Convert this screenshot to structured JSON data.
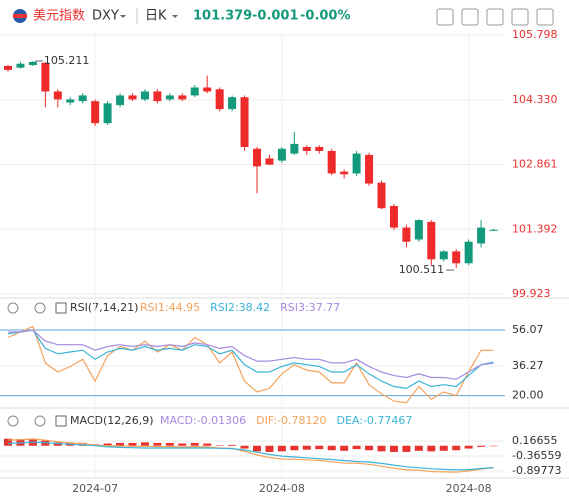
{
  "header": {
    "name": "美元指数",
    "symbol": "DXY",
    "period": "日K",
    "price": "101.379",
    "change": "-0.001",
    "change_pct": "-0.00%"
  },
  "chart_data": [
    {
      "type": "candlestick",
      "up_color": "#139a7c",
      "down_color": "#ee2a2a",
      "grid": true,
      "categories": [
        null,
        null,
        null,
        null,
        null,
        null,
        null,
        "2024-07",
        null,
        null,
        null,
        null,
        null,
        null,
        null,
        null,
        null,
        null,
        null,
        null,
        null,
        null,
        "2024-08",
        null,
        null,
        null,
        null,
        null,
        null,
        null,
        null,
        null,
        null,
        null,
        null,
        null,
        null,
        "2024-08",
        null,
        null
      ],
      "open": [
        105.1,
        105.06,
        105.12,
        105.17,
        104.52,
        104.27,
        104.3,
        104.3,
        103.8,
        104.21,
        104.43,
        104.34,
        104.52,
        104.34,
        104.43,
        104.43,
        104.61,
        104.57,
        104.12,
        104.39,
        103.22,
        103.0,
        102.95,
        103.11,
        103.26,
        103.26,
        103.17,
        102.7,
        102.66,
        103.08,
        102.45,
        101.92,
        101.43,
        101.16,
        101.56,
        100.71,
        100.89,
        100.62,
        101.07,
        101.375
      ],
      "high": [
        105.12,
        105.19,
        105.211,
        105.19,
        104.57,
        104.39,
        104.48,
        104.34,
        104.3,
        104.48,
        104.48,
        104.57,
        104.57,
        104.48,
        104.48,
        104.66,
        104.88,
        104.61,
        104.43,
        104.43,
        103.26,
        103.08,
        103.26,
        103.6,
        103.3,
        103.3,
        103.22,
        102.75,
        103.17,
        103.13,
        102.5,
        101.97,
        101.5,
        101.62,
        101.6,
        100.92,
        100.94,
        101.16,
        101.6,
        101.4
      ],
      "low": [
        104.97,
        105.04,
        105.1,
        104.16,
        104.16,
        104.21,
        104.25,
        103.74,
        103.76,
        104.16,
        104.3,
        104.3,
        104.25,
        104.3,
        104.3,
        104.39,
        104.48,
        104.07,
        104.07,
        103.17,
        102.21,
        102.85,
        102.9,
        103.08,
        103.08,
        103.11,
        102.62,
        102.55,
        102.6,
        102.38,
        101.85,
        101.38,
        100.98,
        101.11,
        100.57,
        100.66,
        100.511,
        100.58,
        100.98,
        101.36
      ],
      "close": [
        105.01,
        105.15,
        105.19,
        104.52,
        104.34,
        104.34,
        104.43,
        103.8,
        104.25,
        104.43,
        104.34,
        104.52,
        104.3,
        104.43,
        104.34,
        104.61,
        104.52,
        104.12,
        104.39,
        103.26,
        102.82,
        102.86,
        103.22,
        103.33,
        103.17,
        103.17,
        102.66,
        102.64,
        103.11,
        102.43,
        101.87,
        101.43,
        101.11,
        101.6,
        100.71,
        100.89,
        100.62,
        101.11,
        101.43,
        101.379
      ],
      "ylim": [
        99.9,
        105.87
      ],
      "yticks": [
        105.798,
        {
          "value": 104.33,
          "label": "104.330"
        },
        102.861,
        101.392,
        99.923
      ],
      "max_label": 105.211,
      "min_label": 100.511
    },
    {
      "type": "line",
      "title": "RSI(7,14,21)",
      "ylim": [
        15.4,
        60.5
      ],
      "yticks": [
        56.07,
        36.27,
        {
          "value": 20,
          "label": "20.00"
        }
      ],
      "series": [
        {
          "name": "RSI1:44.95",
          "color": "#f4a259",
          "values": [
            52,
            55,
            58,
            38,
            33,
            36,
            40,
            28,
            42,
            47,
            45,
            50,
            44,
            48,
            45,
            52,
            48,
            38,
            44,
            28,
            22,
            24,
            32,
            37,
            34,
            33,
            27,
            27,
            38,
            26,
            21,
            17,
            16,
            25,
            18,
            22,
            20,
            33,
            45,
            44.95
          ]
        },
        {
          "name": "RSI2:38.42",
          "color": "#3bb4d8",
          "values": [
            54,
            55,
            56,
            46,
            43,
            44,
            45,
            40,
            44,
            46,
            45,
            47,
            45,
            46,
            45,
            48,
            47,
            43,
            45,
            37,
            33,
            33,
            36,
            38,
            37,
            36,
            33,
            33,
            37,
            32,
            28,
            25,
            24,
            28,
            25,
            26,
            25,
            31,
            37,
            38.42
          ]
        },
        {
          "name": "RSI3:37.77",
          "color": "#a58ae0",
          "values": [
            55,
            55,
            56,
            50,
            48,
            48,
            48,
            45,
            47,
            48,
            47,
            48,
            47,
            48,
            47,
            49,
            48,
            46,
            47,
            42,
            39,
            39,
            40,
            41,
            40,
            40,
            38,
            38,
            40,
            36,
            33,
            31,
            30,
            32,
            30,
            30,
            29,
            33,
            37,
            37.77
          ]
        }
      ]
    },
    {
      "type": "macd",
      "title": "MACD(12,26,9)",
      "ylim": [
        -1.29,
        0.56
      ],
      "yticks": [
        0.16655,
        -0.36559,
        -0.89773
      ],
      "series": [
        {
          "name": "MACD:-0.01306",
          "color": "#a58ae0",
          "bar_color": "#e8322f",
          "kind": "bar",
          "values": [
            0.25,
            0.24,
            0.22,
            0.18,
            0.12,
            0.1,
            0.1,
            0.05,
            0.08,
            0.1,
            0.1,
            0.12,
            0.1,
            0.1,
            0.08,
            0.1,
            0.08,
            0.02,
            0.03,
            -0.1,
            -0.2,
            -0.22,
            -0.2,
            -0.16,
            -0.14,
            -0.12,
            -0.16,
            -0.18,
            -0.12,
            -0.16,
            -0.2,
            -0.22,
            -0.22,
            -0.18,
            -0.2,
            -0.18,
            -0.16,
            -0.1,
            -0.04,
            -0.01306
          ]
        },
        {
          "name": "DIF:-0.78120",
          "color": "#f4a259",
          "kind": "line",
          "values": [
            0.2,
            0.22,
            0.24,
            0.2,
            0.14,
            0.1,
            0.08,
            0.02,
            0.0,
            -0.01,
            -0.02,
            -0.02,
            -0.03,
            -0.03,
            -0.04,
            -0.03,
            -0.04,
            -0.08,
            -0.09,
            -0.2,
            -0.33,
            -0.42,
            -0.47,
            -0.48,
            -0.5,
            -0.52,
            -0.57,
            -0.62,
            -0.62,
            -0.66,
            -0.73,
            -0.8,
            -0.86,
            -0.87,
            -0.92,
            -0.93,
            -0.94,
            -0.9,
            -0.83,
            -0.7812
          ]
        },
        {
          "name": "DEA:-0.77467",
          "color": "#3bb4d8",
          "kind": "line",
          "values": [
            0.08,
            0.1,
            0.13,
            0.11,
            0.08,
            0.05,
            0.03,
            0.0,
            -0.04,
            -0.06,
            -0.07,
            -0.08,
            -0.08,
            -0.08,
            -0.08,
            -0.08,
            -0.08,
            -0.09,
            -0.1,
            -0.15,
            -0.23,
            -0.31,
            -0.37,
            -0.4,
            -0.43,
            -0.46,
            -0.49,
            -0.53,
            -0.56,
            -0.58,
            -0.63,
            -0.69,
            -0.75,
            -0.78,
            -0.82,
            -0.84,
            -0.86,
            -0.85,
            -0.81,
            -0.77467
          ]
        }
      ]
    }
  ]
}
